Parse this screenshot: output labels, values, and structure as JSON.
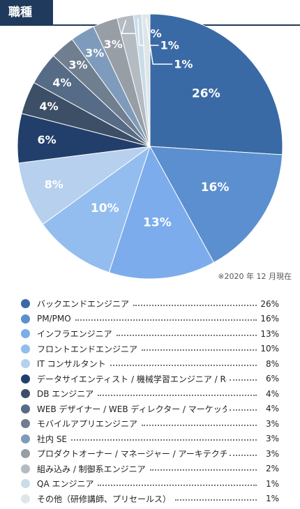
{
  "header": {
    "title": "職種"
  },
  "note": "※2020 年 12 月現在",
  "chart_data": {
    "type": "pie",
    "unit": "%",
    "slices": [
      {
        "label": "バックエンドエンジニア",
        "value": 26,
        "display": "26%",
        "color": "#3a6aa5"
      },
      {
        "label": "PM/PMO",
        "value": 16,
        "display": "16%",
        "color": "#5b8fcf"
      },
      {
        "label": "インフラエンジニア",
        "value": 13,
        "display": "13%",
        "color": "#7cacec"
      },
      {
        "label": "フロントエンドエンジニア",
        "value": 10,
        "display": "10%",
        "color": "#93bdee"
      },
      {
        "label": "IT コンサルタント",
        "value": 8,
        "display": "8%",
        "color": "#b6d0ee"
      },
      {
        "label": "データサイエンティスト / 機械学習エンジニア / R&D",
        "value": 6,
        "display": "6%",
        "color": "#223f6c"
      },
      {
        "label": "DB エンジニア",
        "value": 4,
        "display": "4%",
        "color": "#3d4f67"
      },
      {
        "label": "WEB デザイナー / WEB ディレクター / マーケッター",
        "value": 4,
        "display": "4%",
        "color": "#566b86"
      },
      {
        "label": "モバイルアプリエンジニア",
        "value": 3,
        "display": "3%",
        "color": "#6f7f8f"
      },
      {
        "label": "社内 SE",
        "value": 3,
        "display": "3%",
        "color": "#7e9bbb"
      },
      {
        "label": "プロダクトオーナー / マネージャー / アーキテクチャ",
        "value": 3,
        "display": "3%",
        "color": "#979ea6"
      },
      {
        "label": "組み込み / 制御系エンジニア",
        "value": 2,
        "display": "2%",
        "color": "#b4bbc2"
      },
      {
        "label": "QA エンジニア",
        "value": 1,
        "display": "1%",
        "color": "#c9dde9"
      },
      {
        "label": "その他（研修講師、プリセールス）",
        "value": 1,
        "display": "1%",
        "color": "#dfe6ea"
      }
    ]
  }
}
